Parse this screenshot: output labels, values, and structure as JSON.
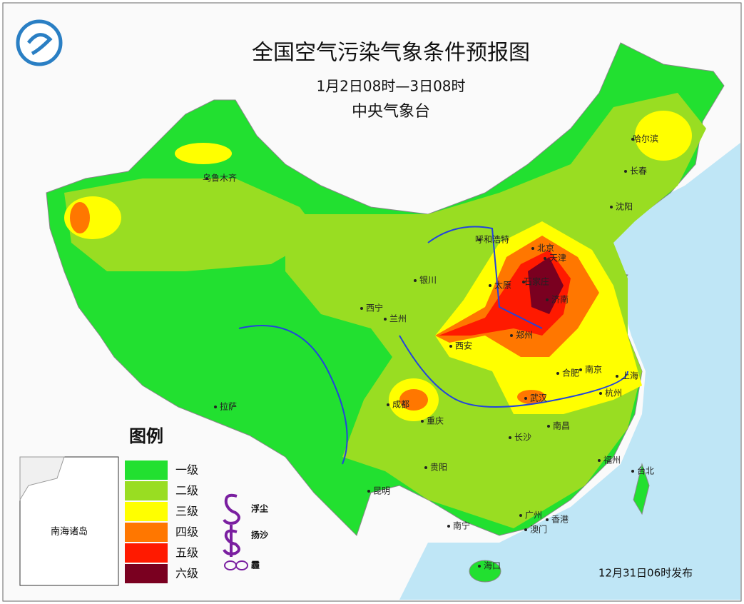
{
  "header": {
    "title": "全国空气污染气象条件预报图",
    "period": "1月2日08时—3日08时",
    "issuer": "中央气象台"
  },
  "legend": {
    "title": "图例",
    "levels": [
      {
        "label": "一级",
        "color": "#22e030"
      },
      {
        "label": "二级",
        "color": "#99dd22"
      },
      {
        "label": "三级",
        "color": "#ffff00"
      },
      {
        "label": "四级",
        "color": "#ff7700"
      },
      {
        "label": "五级",
        "color": "#ff1a00"
      },
      {
        "label": "六级",
        "color": "#7a0020"
      }
    ],
    "symbols": [
      "浮尘",
      "扬沙",
      "霾"
    ]
  },
  "inset": {
    "label": "南海诸岛"
  },
  "footer": {
    "issued": "12月31日06时发布"
  },
  "cities": [
    "哈尔滨",
    "长春",
    "沈阳",
    "乌鲁木齐",
    "呼和浩特",
    "北京",
    "天津",
    "石家庄",
    "太原",
    "济南",
    "银川",
    "西宁",
    "兰州",
    "郑州",
    "西安",
    "合肥",
    "南京",
    "上海",
    "杭州",
    "武汉",
    "成都",
    "重庆",
    "拉萨",
    "长沙",
    "南昌",
    "福州",
    "台北",
    "贵阳",
    "昆明",
    "南宁",
    "广州",
    "香港",
    "澳门",
    "海口"
  ]
}
